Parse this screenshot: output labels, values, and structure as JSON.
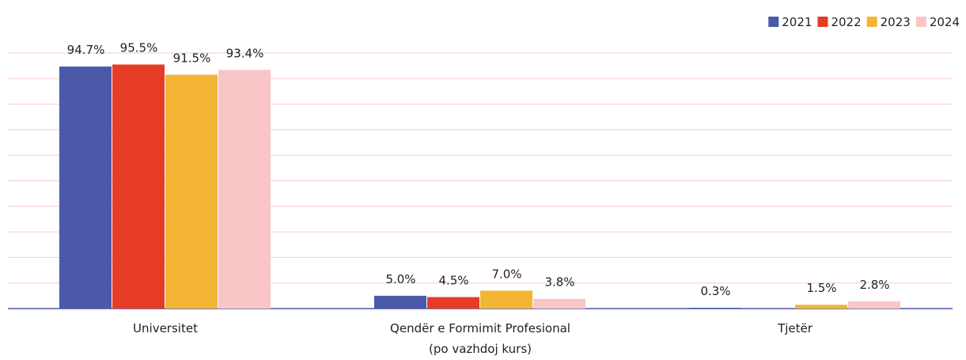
{
  "chart_data": {
    "type": "bar",
    "categories": [
      "Universitet",
      "Qendër e Formimit Profesional\n(po vazhdoj kurs)",
      "Tjetër"
    ],
    "series": [
      {
        "name": "2021",
        "color": "#4a59a8",
        "values": [
          94.7,
          5.0,
          0.3
        ],
        "value_labels": [
          "94.7%",
          "5.0%",
          "0.3%"
        ]
      },
      {
        "name": "2022",
        "color": "#e63c25",
        "values": [
          95.5,
          4.5,
          null
        ],
        "value_labels": [
          "95.5%",
          "4.5%",
          null
        ]
      },
      {
        "name": "2023",
        "color": "#f4b534",
        "values": [
          91.5,
          7.0,
          1.5
        ],
        "value_labels": [
          "91.5%",
          "7.0%",
          "1.5%"
        ]
      },
      {
        "name": "2024",
        "color": "#f9c6c8",
        "values": [
          93.4,
          3.8,
          2.8
        ],
        "value_labels": [
          "93.4%",
          "3.8%",
          "2.8%"
        ]
      }
    ],
    "ylim": [
      0,
      100
    ],
    "yticks": [
      0,
      10,
      20,
      30,
      40,
      50,
      60,
      70,
      80,
      90,
      100
    ],
    "grid": true,
    "legend": "top-right"
  }
}
